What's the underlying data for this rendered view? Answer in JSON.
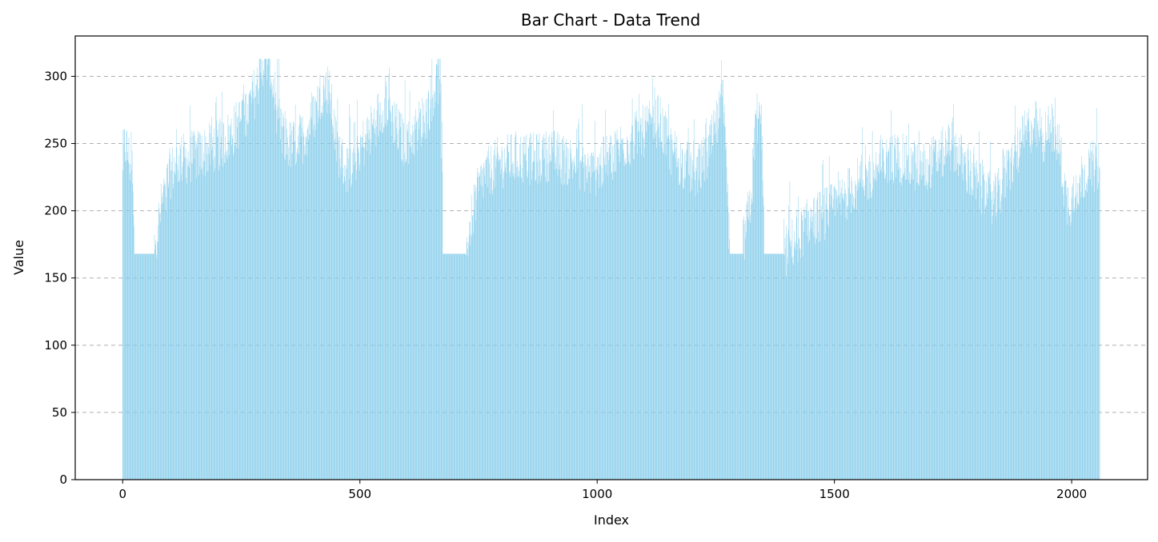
{
  "chart_data": {
    "type": "bar",
    "title": "Bar Chart - Data Trend",
    "xlabel": "Index",
    "ylabel": "Value",
    "xlim": [
      -100,
      2160
    ],
    "ylim": [
      0,
      330
    ],
    "xticks": [
      0,
      500,
      1000,
      1500,
      2000
    ],
    "yticks": [
      0,
      50,
      100,
      150,
      200,
      250,
      300
    ],
    "grid": "y-dashed",
    "bar_color": "#87ceeb",
    "n_points": 2060,
    "segments": [
      {
        "x": 0,
        "y": 238
      },
      {
        "x": 5,
        "y": 250
      },
      {
        "x": 10,
        "y": 245
      },
      {
        "x": 15,
        "y": 236
      },
      {
        "x": 20,
        "y": 232
      },
      {
        "x": 25,
        "y": 168
      },
      {
        "x": 40,
        "y": 168
      },
      {
        "x": 55,
        "y": 168
      },
      {
        "x": 65,
        "y": 170
      },
      {
        "x": 75,
        "y": 190
      },
      {
        "x": 85,
        "y": 210
      },
      {
        "x": 100,
        "y": 228
      },
      {
        "x": 120,
        "y": 238
      },
      {
        "x": 150,
        "y": 240
      },
      {
        "x": 180,
        "y": 245
      },
      {
        "x": 210,
        "y": 250
      },
      {
        "x": 230,
        "y": 258
      },
      {
        "x": 250,
        "y": 268
      },
      {
        "x": 270,
        "y": 280
      },
      {
        "x": 285,
        "y": 295
      },
      {
        "x": 295,
        "y": 312
      },
      {
        "x": 310,
        "y": 312
      },
      {
        "x": 320,
        "y": 285
      },
      {
        "x": 335,
        "y": 255
      },
      {
        "x": 355,
        "y": 248
      },
      {
        "x": 380,
        "y": 255
      },
      {
        "x": 400,
        "y": 268
      },
      {
        "x": 420,
        "y": 290
      },
      {
        "x": 435,
        "y": 292
      },
      {
        "x": 450,
        "y": 250
      },
      {
        "x": 470,
        "y": 230
      },
      {
        "x": 490,
        "y": 240
      },
      {
        "x": 520,
        "y": 258
      },
      {
        "x": 540,
        "y": 272
      },
      {
        "x": 555,
        "y": 282
      },
      {
        "x": 570,
        "y": 268
      },
      {
        "x": 590,
        "y": 252
      },
      {
        "x": 610,
        "y": 256
      },
      {
        "x": 640,
        "y": 272
      },
      {
        "x": 655,
        "y": 290
      },
      {
        "x": 670,
        "y": 302
      },
      {
        "x": 675,
        "y": 168
      },
      {
        "x": 700,
        "y": 168
      },
      {
        "x": 720,
        "y": 168
      },
      {
        "x": 730,
        "y": 185
      },
      {
        "x": 745,
        "y": 210
      },
      {
        "x": 760,
        "y": 225
      },
      {
        "x": 790,
        "y": 235
      },
      {
        "x": 830,
        "y": 240
      },
      {
        "x": 870,
        "y": 238
      },
      {
        "x": 900,
        "y": 242
      },
      {
        "x": 930,
        "y": 238
      },
      {
        "x": 960,
        "y": 236
      },
      {
        "x": 990,
        "y": 228
      },
      {
        "x": 1020,
        "y": 238
      },
      {
        "x": 1050,
        "y": 248
      },
      {
        "x": 1080,
        "y": 255
      },
      {
        "x": 1110,
        "y": 262
      },
      {
        "x": 1130,
        "y": 268
      },
      {
        "x": 1150,
        "y": 248
      },
      {
        "x": 1180,
        "y": 235
      },
      {
        "x": 1210,
        "y": 228
      },
      {
        "x": 1230,
        "y": 240
      },
      {
        "x": 1250,
        "y": 260
      },
      {
        "x": 1265,
        "y": 282
      },
      {
        "x": 1280,
        "y": 168
      },
      {
        "x": 1300,
        "y": 168
      },
      {
        "x": 1310,
        "y": 178
      },
      {
        "x": 1325,
        "y": 210
      },
      {
        "x": 1335,
        "y": 272
      },
      {
        "x": 1348,
        "y": 262
      },
      {
        "x": 1352,
        "y": 168
      },
      {
        "x": 1380,
        "y": 168
      },
      {
        "x": 1400,
        "y": 170
      },
      {
        "x": 1420,
        "y": 180
      },
      {
        "x": 1450,
        "y": 192
      },
      {
        "x": 1480,
        "y": 198
      },
      {
        "x": 1510,
        "y": 205
      },
      {
        "x": 1540,
        "y": 218
      },
      {
        "x": 1570,
        "y": 225
      },
      {
        "x": 1600,
        "y": 235
      },
      {
        "x": 1630,
        "y": 240
      },
      {
        "x": 1660,
        "y": 235
      },
      {
        "x": 1690,
        "y": 232
      },
      {
        "x": 1720,
        "y": 240
      },
      {
        "x": 1750,
        "y": 250
      },
      {
        "x": 1780,
        "y": 230
      },
      {
        "x": 1810,
        "y": 215
      },
      {
        "x": 1840,
        "y": 208
      },
      {
        "x": 1860,
        "y": 225
      },
      {
        "x": 1880,
        "y": 240
      },
      {
        "x": 1900,
        "y": 255
      },
      {
        "x": 1920,
        "y": 265
      },
      {
        "x": 1940,
        "y": 255
      },
      {
        "x": 1960,
        "y": 262
      },
      {
        "x": 1975,
        "y": 245
      },
      {
        "x": 1990,
        "y": 205
      },
      {
        "x": 2005,
        "y": 212
      },
      {
        "x": 2020,
        "y": 225
      },
      {
        "x": 2040,
        "y": 232
      },
      {
        "x": 2059,
        "y": 235
      }
    ],
    "flat_ranges": [
      [
        25,
        66,
        168
      ],
      [
        675,
        723,
        168
      ],
      [
        1280,
        1307,
        168
      ],
      [
        1352,
        1392,
        168
      ]
    ],
    "clip_max": 313
  }
}
